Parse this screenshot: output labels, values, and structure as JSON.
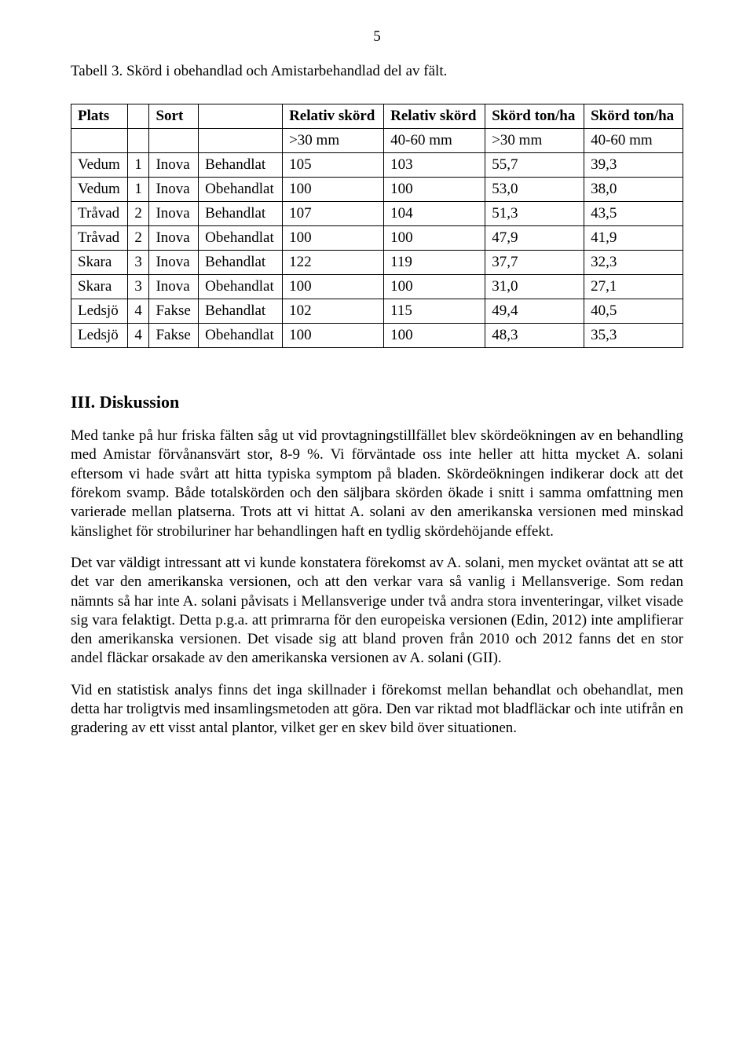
{
  "page_number": "5",
  "table_caption": "Tabell 3. Skörd i obehandlad och Amistarbehandlad del av fält.",
  "table": {
    "header_row1": [
      "Plats",
      "",
      "Sort",
      "",
      "Relativ skörd",
      "Relativ skörd",
      "Skörd ton/ha",
      "Skörd ton/ha"
    ],
    "header_row2": [
      "",
      "",
      "",
      "",
      ">30 mm",
      "40-60 mm",
      ">30 mm",
      "40-60 mm"
    ],
    "rows": [
      [
        "Vedum",
        "1",
        "Inova",
        "Behandlat",
        "105",
        "103",
        "55,7",
        "39,3"
      ],
      [
        "Vedum",
        "1",
        "Inova",
        "Obehandlat",
        "100",
        "100",
        "53,0",
        "38,0"
      ],
      [
        "Tråvad",
        "2",
        "Inova",
        "Behandlat",
        "107",
        "104",
        "51,3",
        "43,5"
      ],
      [
        "Tråvad",
        "2",
        "Inova",
        "Obehandlat",
        "100",
        "100",
        "47,9",
        "41,9"
      ],
      [
        "Skara",
        "3",
        "Inova",
        "Behandlat",
        "122",
        "119",
        "37,7",
        "32,3"
      ],
      [
        "Skara",
        "3",
        "Inova",
        "Obehandlat",
        "100",
        "100",
        "31,0",
        "27,1"
      ],
      [
        "Ledsjö",
        "4",
        "Fakse",
        "Behandlat",
        "102",
        "115",
        "49,4",
        "40,5"
      ],
      [
        "Ledsjö",
        "4",
        "Fakse",
        "Obehandlat",
        "100",
        "100",
        "48,3",
        "35,3"
      ]
    ]
  },
  "section_heading": "III. Diskussion",
  "paragraphs": [
    "Med tanke på hur friska fälten såg ut vid provtagningstillfället blev skördeökningen av en behandling med Amistar förvånansvärt stor, 8-9 %. Vi förväntade oss inte heller att hitta mycket A. solani eftersom vi hade svårt att hitta typiska symptom på bladen. Skördeökningen indikerar dock att det förekom svamp. Både totalskörden och den säljbara skörden ökade i snitt i samma omfattning men varierade mellan platserna. Trots att vi hittat A. solani av den amerikanska versionen med minskad känslighet för strobiluriner har behandlingen haft en tydlig skördehöjande effekt.",
    "Det var väldigt intressant att vi kunde konstatera förekomst av A. solani, men mycket oväntat att se att det var den amerikanska versionen, och att den verkar vara så vanlig i Mellansverige. Som redan nämnts så har inte A. solani påvisats i Mellansverige under två andra stora inventeringar, vilket visade sig vara felaktigt. Detta p.g.a. att primrarna för den europeiska versionen (Edin, 2012) inte amplifierar den amerikanska versionen. Det visade sig att bland proven från 2010 och 2012 fanns det en stor andel fläckar orsakade av den amerikanska versionen av A. solani (GII).",
    "Vid en statistisk analys finns det inga skillnader i förekomst mellan behandlat och obehandlat, men detta har troligtvis med insamlingsmetoden att göra. Den var riktad mot bladfläckar och inte utifrån en gradering av ett visst antal plantor, vilket ger en skev bild över situationen."
  ]
}
